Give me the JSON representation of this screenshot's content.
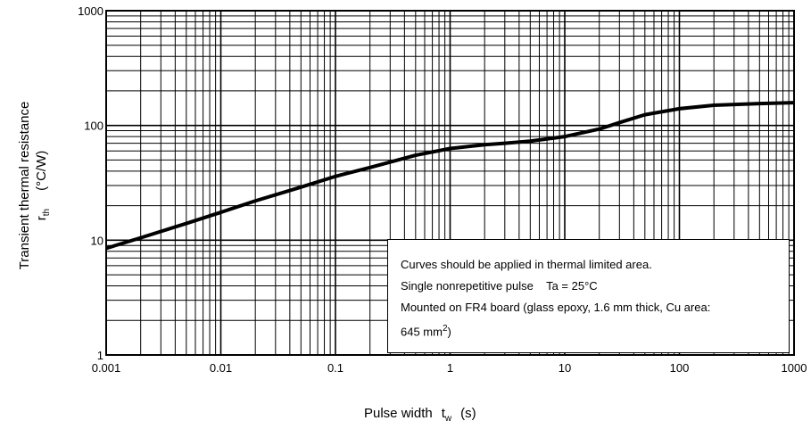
{
  "chart_data": {
    "type": "line",
    "xscale": "log",
    "yscale": "log",
    "xlim": [
      0.001,
      1000
    ],
    "ylim": [
      1,
      1000
    ],
    "grid": true,
    "x_ticks": [
      "0.001",
      "0.01",
      "0.1",
      "1",
      "10",
      "100",
      "1000"
    ],
    "y_ticks": [
      "1",
      "10",
      "100",
      "1000"
    ],
    "xlabel": {
      "main": "Pulse width",
      "symbol": "t",
      "subscript": "w",
      "unit": "(s)"
    },
    "ylabel": {
      "line1": "Transient thermal resistance",
      "symbol": "r",
      "subscript": "th",
      "unit": "(°C/W)"
    },
    "series": [
      {
        "x": [
          0.001,
          0.002,
          0.005,
          0.01,
          0.02,
          0.05,
          0.1,
          0.2,
          0.5,
          1,
          2,
          3,
          5,
          10,
          20,
          30,
          50,
          100,
          200,
          500,
          1000
        ],
        "y": [
          8.5,
          10.5,
          14,
          17.5,
          22,
          29,
          36,
          43,
          55,
          63,
          68,
          70,
          73,
          80,
          93,
          106,
          124,
          140,
          150,
          155,
          158
        ]
      }
    ],
    "annotations": [
      "Curves should be applied in thermal limited area.",
      "Single nonrepetitive pulse    Ta = 25°C",
      "Mounted on FR4 board (glass epoxy, 1.6 mm thick, Cu area:",
      "645 mm",
      "2",
      ")"
    ],
    "line_color": "#000000"
  }
}
